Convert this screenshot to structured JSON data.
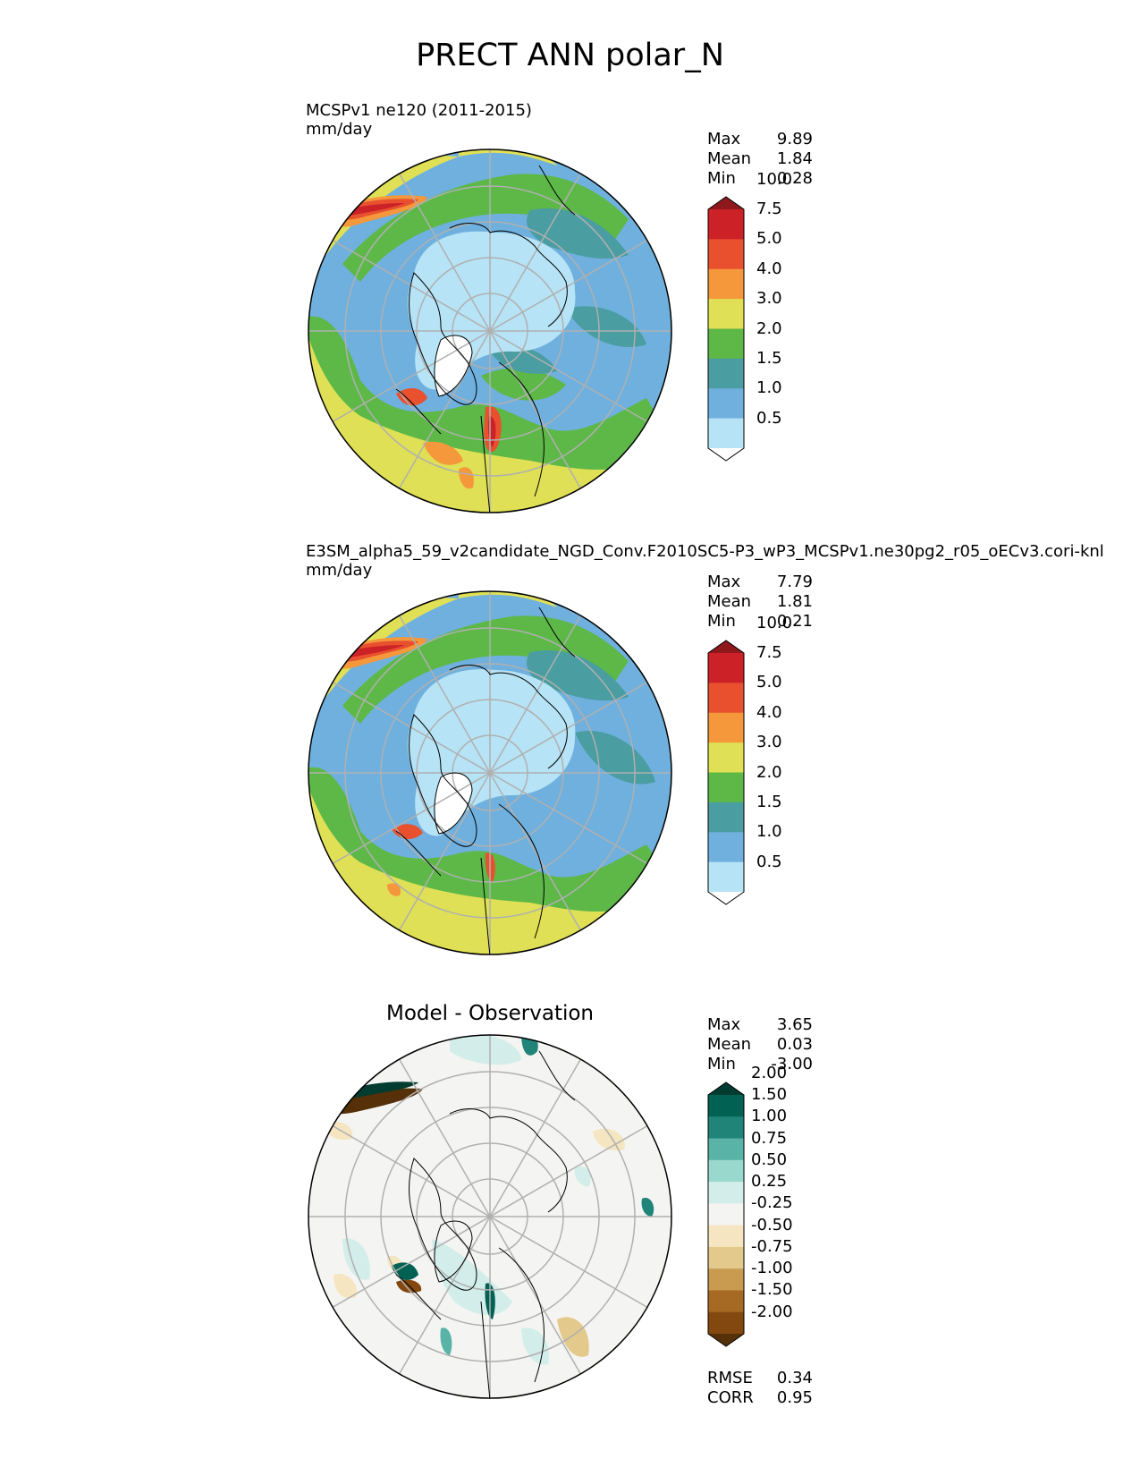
{
  "figure_title": "PRECT ANN polar_N",
  "panels": [
    {
      "title_line1": "MCSPv1 ne120 (2011-2015)",
      "title_line2": "mm/day",
      "stats": [
        {
          "label": "Max",
          "value": "9.89"
        },
        {
          "label": "Mean",
          "value": "1.84"
        },
        {
          "label": "Min",
          "value": "0.28"
        }
      ]
    },
    {
      "title_line1": "E3SM_alpha5_59_v2candidate_NGD_Conv.F2010SC5-P3_wP3_MCSPv1.ne30pg2_r05_oECv3.cori-knl",
      "title_line2": "mm/day",
      "stats": [
        {
          "label": "Max",
          "value": "7.79"
        },
        {
          "label": "Mean",
          "value": "1.81"
        },
        {
          "label": "Min",
          "value": "0.21"
        }
      ]
    },
    {
      "title_center": "Model - Observation",
      "stats": [
        {
          "label": "Max",
          "value": "3.65"
        },
        {
          "label": "Mean",
          "value": "0.03"
        },
        {
          "label": "Min",
          "value": "-3.00"
        }
      ],
      "metrics": [
        {
          "label": "RMSE",
          "value": "0.34"
        },
        {
          "label": "CORR",
          "value": "0.95"
        }
      ]
    }
  ],
  "colorbars": {
    "precip": {
      "ticks": [
        "0.5",
        "1.0",
        "1.5",
        "2.0",
        "3.0",
        "4.0",
        "5.0",
        "7.5",
        "10.0"
      ],
      "colors": [
        "#ffffff",
        "#b6e3f5",
        "#6fb0de",
        "#4a9da0",
        "#5db848",
        "#dfe055",
        "#f5973b",
        "#e8502e",
        "#cc2127",
        "#8e181b"
      ]
    },
    "diff": {
      "ticks": [
        "-2.00",
        "-1.50",
        "-1.00",
        "-0.75",
        "-0.50",
        "-0.25",
        "0.25",
        "0.50",
        "0.75",
        "1.00",
        "1.50",
        "2.00"
      ],
      "colors": [
        "#553009",
        "#82480f",
        "#a66a25",
        "#c99b51",
        "#e3ca8c",
        "#f5e5c0",
        "#f4f4f2",
        "#d3eeea",
        "#99d8cd",
        "#59b3a6",
        "#208479",
        "#016153",
        "#023c30"
      ]
    }
  },
  "chart_data": [
    {
      "type": "heatmap",
      "title": "MCSPv1 ne120 (2011-2015)",
      "units": "mm/day",
      "projection": "north polar stereographic",
      "stats": {
        "max": 9.89,
        "mean": 1.84,
        "min": 0.28
      },
      "levels": [
        0.5,
        1.0,
        1.5,
        2.0,
        3.0,
        4.0,
        5.0,
        7.5,
        10.0
      ],
      "colorbar_extend": "both"
    },
    {
      "type": "heatmap",
      "title": "E3SM_alpha5_59_v2candidate_NGD_Conv.F2010SC5-P3_wP3_MCSPv1.ne30pg2_r05_oECv3.cori-knl",
      "units": "mm/day",
      "projection": "north polar stereographic",
      "stats": {
        "max": 7.79,
        "mean": 1.81,
        "min": 0.21
      },
      "levels": [
        0.5,
        1.0,
        1.5,
        2.0,
        3.0,
        4.0,
        5.0,
        7.5,
        10.0
      ],
      "colorbar_extend": "both"
    },
    {
      "type": "heatmap",
      "title": "Model - Observation",
      "projection": "north polar stereographic",
      "stats": {
        "max": 3.65,
        "mean": 0.03,
        "min": -3.0
      },
      "rmse": 0.34,
      "corr": 0.95,
      "levels": [
        -2.0,
        -1.5,
        -1.0,
        -0.75,
        -0.5,
        -0.25,
        0.25,
        0.5,
        0.75,
        1.0,
        1.5,
        2.0
      ],
      "colorbar_extend": "both"
    }
  ]
}
